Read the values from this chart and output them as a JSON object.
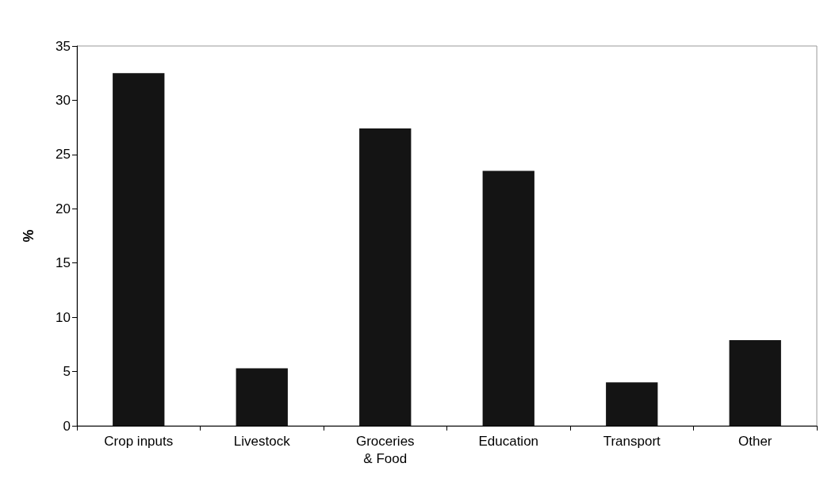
{
  "chart_data": {
    "type": "bar",
    "ylabel": "%",
    "categories": [
      "Crop inputs",
      "Livestock",
      "Groceries\n& Food",
      "Education",
      "Transport",
      "Other"
    ],
    "values": [
      32.5,
      5.3,
      27.4,
      23.5,
      4,
      7.9
    ],
    "color": "#141414",
    "ylim": [
      0,
      35
    ],
    "yticks": [
      0,
      5,
      10,
      15,
      20,
      25,
      30,
      35
    ],
    "grid": false
  }
}
